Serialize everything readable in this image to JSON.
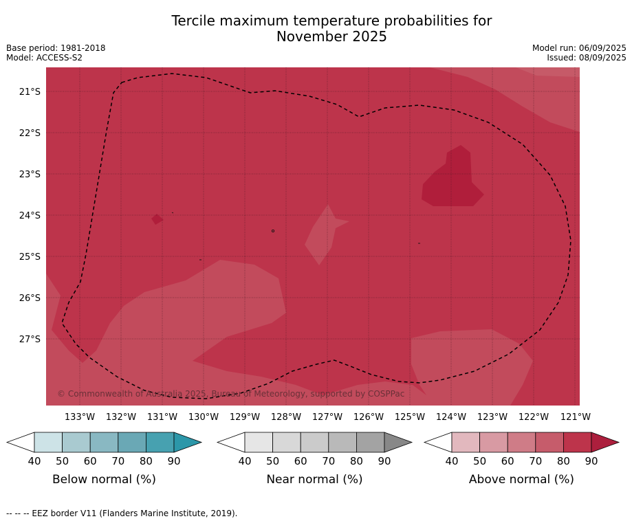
{
  "title_line1": "Tercile maximum temperature probabilities for",
  "title_line2": "November 2025",
  "base_period": "Base period: 1981-2018",
  "model": "Model: ACCESS-S2",
  "model_run": "Model run: 06/09/2025",
  "issued": "Issued: 08/09/2025",
  "copyright": "© Commonwealth of Australia 2025, Bureau of Meteorology, supported by COSPPac",
  "lat_ticks": [
    "21°S",
    "22°S",
    "23°S",
    "24°S",
    "25°S",
    "26°S",
    "27°S"
  ],
  "lon_ticks": [
    "133°W",
    "132°W",
    "131°W",
    "130°W",
    "129°W",
    "128°W",
    "127°W",
    "126°W",
    "125°W",
    "124°W",
    "123°W",
    "122°W",
    "121°W"
  ],
  "colorbars": [
    {
      "title": "Below normal (%)",
      "labels": [
        "40",
        "50",
        "60",
        "70",
        "80",
        "90"
      ],
      "colors": [
        "#cde3e7",
        "#a9cad0",
        "#89b8c2",
        "#6aa8b5",
        "#47a1b0",
        "#2c97a9"
      ]
    },
    {
      "title": "Near normal (%)",
      "labels": [
        "40",
        "50",
        "60",
        "70",
        "80",
        "90"
      ],
      "colors": [
        "#e6e6e6",
        "#d8d8d8",
        "#cbcbcb",
        "#b9b9b9",
        "#a3a3a3",
        "#888888"
      ]
    },
    {
      "title": "Above normal (%)",
      "labels": [
        "40",
        "50",
        "60",
        "70",
        "80",
        "90"
      ],
      "colors": [
        "#e2b8be",
        "#d89aa3",
        "#cf7c87",
        "#c65c6b",
        "#bd344b",
        "#ac1f3d"
      ]
    }
  ],
  "map_colors": {
    "band_70_80": "#c24b5c",
    "band_80_90": "#bd344b",
    "band_90": "#b01e3b"
  },
  "footnote": "-- -- -- EEZ border V11 (Flanders Marine Institute, 2019)."
}
